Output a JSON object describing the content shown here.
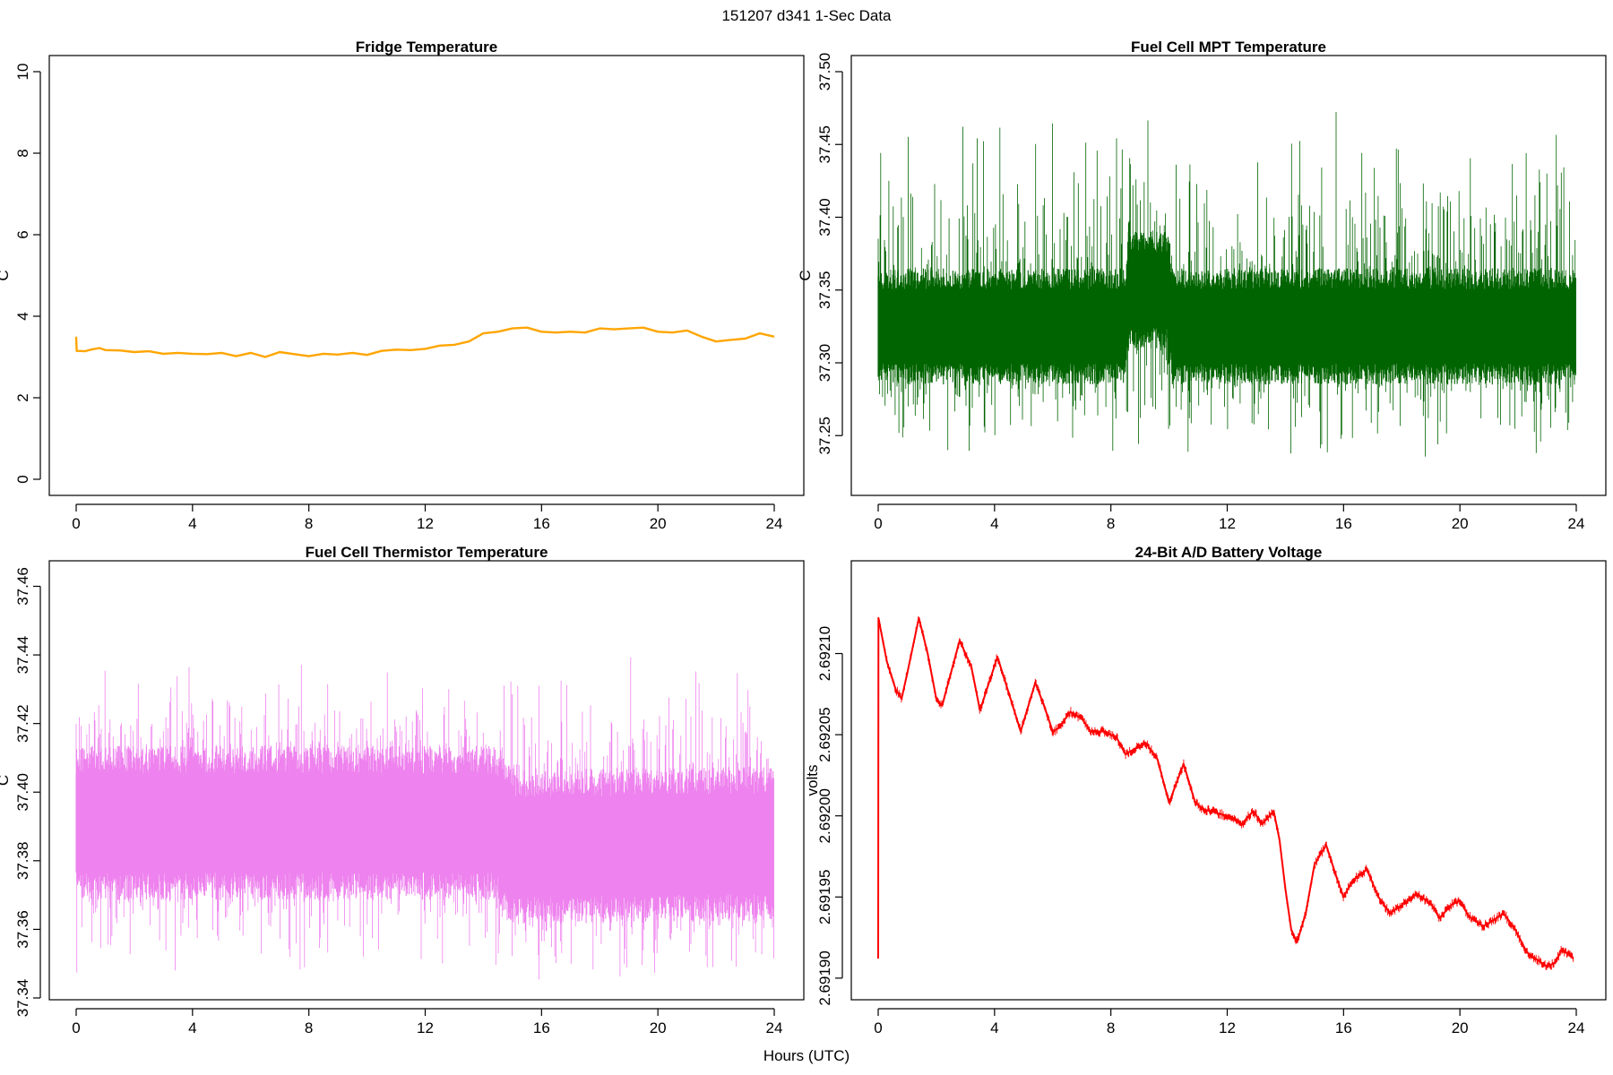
{
  "figure": {
    "suptitle": "151207   d341   1-Sec Data",
    "shared_xlabel": "Hours (UTC)"
  },
  "chart_data": [
    {
      "id": "fridge",
      "type": "line",
      "title": "Fridge Temperature",
      "xlabel": "",
      "ylabel": "C",
      "xlim": [
        0,
        24
      ],
      "ylim": [
        0,
        10
      ],
      "xticks": [
        0,
        4,
        8,
        12,
        16,
        20,
        24
      ],
      "yticks": [
        0,
        2,
        4,
        6,
        8,
        10
      ],
      "ytick_labels": [
        "0",
        "2",
        "4",
        "6",
        "8",
        "10"
      ],
      "color": "#FFA500",
      "series": [
        {
          "x": [
            0,
            0.02,
            0.05,
            0.3,
            0.5,
            0.8,
            1.0,
            1.5,
            2.0,
            2.5,
            3.0,
            3.5,
            4.0,
            4.5,
            5.0,
            5.5,
            6.0,
            6.5,
            7.0,
            7.5,
            8.0,
            8.5,
            9.0,
            9.5,
            10.0,
            10.5,
            11.0,
            11.5,
            12.0,
            12.5,
            13.0,
            13.5,
            14.0,
            14.5,
            15.0,
            15.5,
            16.0,
            16.5,
            17.0,
            17.5,
            18.0,
            18.5,
            19.0,
            19.5,
            20.0,
            20.5,
            21.0,
            21.5,
            22.0,
            22.5,
            23.0,
            23.5,
            24.0
          ],
          "y": [
            3.5,
            3.15,
            3.15,
            3.14,
            3.18,
            3.22,
            3.17,
            3.16,
            3.12,
            3.14,
            3.08,
            3.1,
            3.08,
            3.07,
            3.1,
            3.02,
            3.1,
            3.0,
            3.12,
            3.07,
            3.02,
            3.08,
            3.06,
            3.1,
            3.05,
            3.15,
            3.18,
            3.17,
            3.2,
            3.28,
            3.3,
            3.38,
            3.58,
            3.62,
            3.7,
            3.72,
            3.62,
            3.6,
            3.62,
            3.6,
            3.7,
            3.68,
            3.7,
            3.72,
            3.62,
            3.6,
            3.65,
            3.5,
            3.38,
            3.42,
            3.45,
            3.58,
            3.5
          ]
        }
      ]
    },
    {
      "id": "mpt",
      "type": "line",
      "title": "Fuel Cell MPT Temperature",
      "xlabel": "",
      "ylabel": "C",
      "xlim": [
        0,
        24
      ],
      "ylim": [
        37.22,
        37.5
      ],
      "xticks": [
        0,
        4,
        8,
        12,
        16,
        20,
        24
      ],
      "yticks": [
        37.25,
        37.3,
        37.35,
        37.4,
        37.45,
        37.5
      ],
      "ytick_labels": [
        "37.25",
        "37.30",
        "37.35",
        "37.40",
        "37.45",
        "37.50"
      ],
      "color": "#006400",
      "noise": {
        "center": [
          {
            "x": 0,
            "y": 37.325
          },
          {
            "x": 8.5,
            "y": 37.325
          },
          {
            "x": 8.6,
            "y": 37.35
          },
          {
            "x": 10.0,
            "y": 37.35
          },
          {
            "x": 10.1,
            "y": 37.325
          },
          {
            "x": 24,
            "y": 37.325
          }
        ],
        "core_half_width": 0.032,
        "spike_high": 37.475,
        "spike_low": 37.225
      }
    },
    {
      "id": "thermistor",
      "type": "line",
      "title": "Fuel Cell Thermistor Temperature",
      "xlabel": "",
      "ylabel": "C",
      "xlim": [
        0,
        24
      ],
      "ylim": [
        37.34,
        37.463
      ],
      "xticks": [
        0,
        4,
        8,
        12,
        16,
        20,
        24
      ],
      "yticks": [
        37.34,
        37.36,
        37.38,
        37.4,
        37.42,
        37.44,
        37.46
      ],
      "ytick_labels": [
        "37.34",
        "37.36",
        "37.38",
        "37.40",
        "37.42",
        "37.44",
        "37.46"
      ],
      "color": "#EE82EE",
      "noise": {
        "center": [
          {
            "x": 0,
            "y": 37.391
          },
          {
            "x": 14.4,
            "y": 37.391
          },
          {
            "x": 15.0,
            "y": 37.384
          },
          {
            "x": 24,
            "y": 37.385
          }
        ],
        "core_half_width": 0.018,
        "spike_high": 37.44,
        "spike_low": 37.345
      }
    },
    {
      "id": "battery",
      "type": "line",
      "title": "24-Bit A/D Battery Voltage",
      "xlabel": "",
      "ylabel": "volts",
      "xlim": [
        0,
        24
      ],
      "ylim": [
        2.69189,
        2.692145
      ],
      "xticks": [
        0,
        4,
        8,
        12,
        16,
        20,
        24
      ],
      "yticks": [
        2.6919,
        2.69195,
        2.692,
        2.69205,
        2.6921
      ],
      "ytick_labels": [
        "2.69190",
        "2.69195",
        "2.69200",
        "2.69205",
        "2.69210"
      ],
      "color": "#FF0000",
      "series": [
        {
          "x": [
            0,
            0.01,
            0.03,
            0.3,
            0.6,
            0.8,
            1.0,
            1.4,
            1.7,
            2.0,
            2.2,
            2.8,
            3.2,
            3.5,
            4.1,
            4.5,
            4.9,
            5.4,
            5.7,
            6.0,
            6.2,
            6.6,
            7.0,
            7.3,
            7.8,
            8.2,
            8.5,
            9.2,
            9.6,
            10.0,
            10.5,
            10.9,
            11.2,
            12.0,
            12.5,
            12.9,
            13.2,
            13.6,
            13.8,
            14.0,
            14.2,
            14.4,
            14.7,
            15.0,
            15.4,
            15.8,
            16.0,
            16.3,
            16.8,
            17.2,
            17.6,
            18.0,
            18.5,
            19.0,
            19.3,
            19.7,
            20.0,
            20.3,
            20.8,
            21.1,
            21.5,
            21.9,
            22.3,
            22.6,
            23.0,
            23.3,
            23.5,
            23.7,
            23.9
          ],
          "y": [
            2.691912,
            2.692122,
            2.69212,
            2.692095,
            2.692078,
            2.692072,
            2.692088,
            2.692122,
            2.6921,
            2.692072,
            2.692068,
            2.692108,
            2.692092,
            2.692065,
            2.692098,
            2.692075,
            2.692052,
            2.692082,
            2.692068,
            2.692052,
            2.692054,
            2.692064,
            2.69206,
            2.692052,
            2.692052,
            2.692048,
            2.692038,
            2.692045,
            2.692035,
            2.692008,
            2.692032,
            2.692008,
            2.692004,
            2.692,
            2.691995,
            2.692003,
            2.691995,
            2.692003,
            2.691985,
            2.691955,
            2.69193,
            2.691922,
            2.69194,
            2.69197,
            2.691982,
            2.69196,
            2.69195,
            2.69196,
            2.691967,
            2.69195,
            2.69194,
            2.691945,
            2.691952,
            2.691946,
            2.691937,
            2.691945,
            2.691948,
            2.691938,
            2.691932,
            2.691935,
            2.69194,
            2.69193,
            2.691916,
            2.691912,
            2.691907,
            2.69191,
            2.691918,
            2.691915,
            2.691912
          ]
        }
      ]
    }
  ]
}
